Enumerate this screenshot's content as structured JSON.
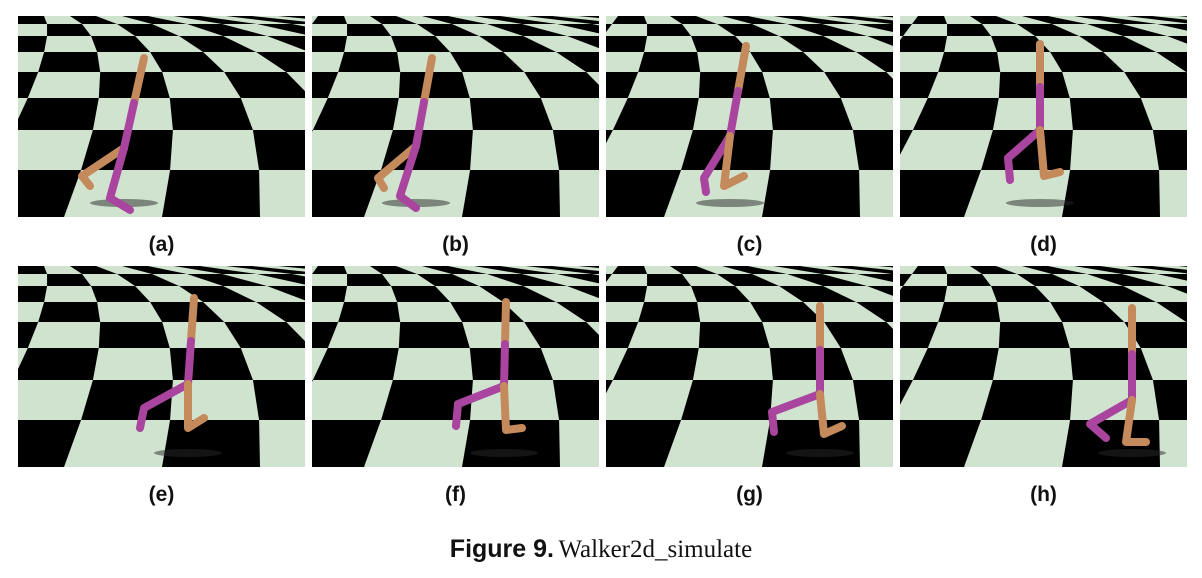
{
  "figure": {
    "number_label": "Figure 9.",
    "title": "Walker2d_simulate"
  },
  "panels": [
    {
      "label": "(a)"
    },
    {
      "label": "(b)"
    },
    {
      "label": "(c)"
    },
    {
      "label": "(d)"
    },
    {
      "label": "(e)"
    },
    {
      "label": "(f)"
    },
    {
      "label": "(g)"
    },
    {
      "label": "(h)"
    }
  ],
  "colors": {
    "checker_light": "#cfe3cf",
    "checker_dark": "#000000",
    "leg_tan": "#c48a5c",
    "leg_purple": "#a9449f"
  }
}
